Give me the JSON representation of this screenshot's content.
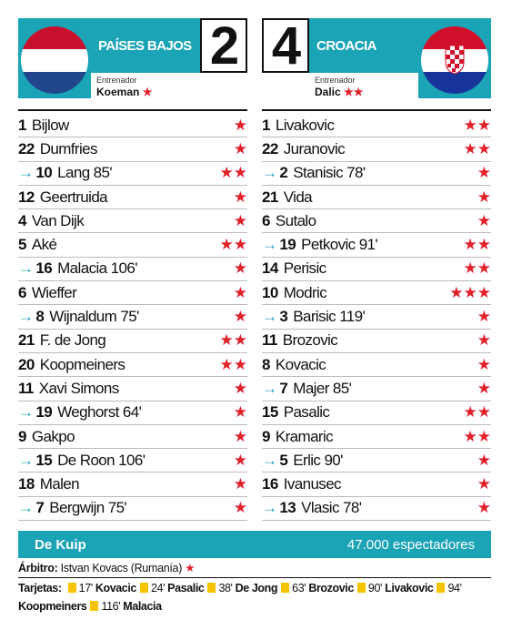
{
  "home": {
    "team": "PAÍSES BAJOS",
    "score": 2,
    "coach_label": "Entrenador",
    "coach": "Koeman",
    "coach_stars": "★",
    "players": [
      {
        "number": "1",
        "name": "Bijlow",
        "stars": "★",
        "sub": false
      },
      {
        "number": "22",
        "name": "Dumfries",
        "stars": "★",
        "sub": false
      },
      {
        "number": "10",
        "name": "Lang 85'",
        "stars": "★★",
        "sub": true
      },
      {
        "number": "12",
        "name": "Geertruida",
        "stars": "★",
        "sub": false
      },
      {
        "number": "4",
        "name": "Van Dijk",
        "stars": "★",
        "sub": false
      },
      {
        "number": "5",
        "name": "Aké",
        "stars": "★★",
        "sub": false
      },
      {
        "number": "16",
        "name": "Malacia 106'",
        "stars": "★",
        "sub": true
      },
      {
        "number": "6",
        "name": "Wieffer",
        "stars": "★",
        "sub": false
      },
      {
        "number": "8",
        "name": "Wijnaldum 75'",
        "stars": "★",
        "sub": true
      },
      {
        "number": "21",
        "name": "F. de Jong",
        "stars": "★★",
        "sub": false
      },
      {
        "number": "20",
        "name": "Koopmeiners",
        "stars": "★★",
        "sub": false
      },
      {
        "number": "11",
        "name": "Xavi Simons",
        "stars": "★",
        "sub": false
      },
      {
        "number": "19",
        "name": "Weghorst 64'",
        "stars": "★",
        "sub": true
      },
      {
        "number": "9",
        "name": "Gakpo",
        "stars": "★",
        "sub": false
      },
      {
        "number": "15",
        "name": "De Roon 106'",
        "stars": "★",
        "sub": true
      },
      {
        "number": "18",
        "name": "Malen",
        "stars": "★",
        "sub": false
      },
      {
        "number": "7",
        "name": "Bergwijn 75'",
        "stars": "★",
        "sub": true
      }
    ]
  },
  "away": {
    "team": "CROACIA",
    "score": 4,
    "coach_label": "Entrenador",
    "coach": "Dalic",
    "coach_stars": "★★",
    "players": [
      {
        "number": "1",
        "name": "Livakovic",
        "stars": "★★",
        "sub": false
      },
      {
        "number": "22",
        "name": "Juranovic",
        "stars": "★★",
        "sub": false
      },
      {
        "number": "2",
        "name": "Stanisic 78'",
        "stars": "★",
        "sub": true
      },
      {
        "number": "21",
        "name": "Vida",
        "stars": "★",
        "sub": false
      },
      {
        "number": "6",
        "name": "Sutalo",
        "stars": "★",
        "sub": false
      },
      {
        "number": "19",
        "name": "Petkovic 91'",
        "stars": "★★",
        "sub": true
      },
      {
        "number": "14",
        "name": "Perisic",
        "stars": "★★",
        "sub": false
      },
      {
        "number": "10",
        "name": "Modric",
        "stars": "★★★",
        "sub": false
      },
      {
        "number": "3",
        "name": "Barisic 119'",
        "stars": "★",
        "sub": true
      },
      {
        "number": "11",
        "name": "Brozovic",
        "stars": "★",
        "sub": false
      },
      {
        "number": "8",
        "name": "Kovacic",
        "stars": "★",
        "sub": false
      },
      {
        "number": "7",
        "name": "Majer 85'",
        "stars": "★",
        "sub": true
      },
      {
        "number": "15",
        "name": "Pasalic",
        "stars": "★★",
        "sub": false
      },
      {
        "number": "9",
        "name": "Kramaric",
        "stars": "★★",
        "sub": false
      },
      {
        "number": "5",
        "name": "Erlic 90'",
        "stars": "★",
        "sub": true
      },
      {
        "number": "16",
        "name": "Ivanusec",
        "stars": "★",
        "sub": false
      },
      {
        "number": "13",
        "name": "Vlasic 78'",
        "stars": "★",
        "sub": true
      }
    ]
  },
  "venue": {
    "stadium": "De Kuip",
    "attendance": "47.000 espectadores"
  },
  "referee": {
    "label": "Árbitro:",
    "name": "Istvan Kovacs (Rumanía)",
    "stars": "★"
  },
  "cards": {
    "label": "Tarjetas:",
    "items": [
      {
        "minute": "17'",
        "player": "Kovacic"
      },
      {
        "minute": "24'",
        "player": "Pasalic"
      },
      {
        "minute": "38'",
        "player": "De Jong"
      },
      {
        "minute": "63'",
        "player": "Brozovic"
      },
      {
        "minute": "90'",
        "player": "Livakovic"
      },
      {
        "minute": "94'",
        "player": "Koopmeiners"
      },
      {
        "minute": "116'",
        "player": "Malacia"
      }
    ]
  }
}
